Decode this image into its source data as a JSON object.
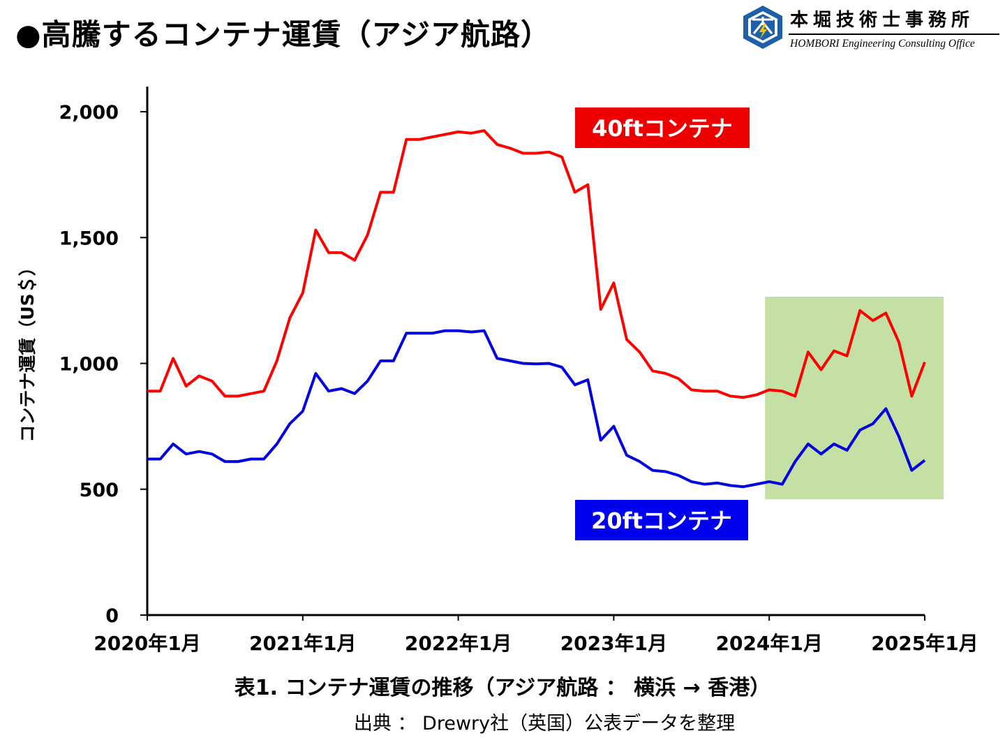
{
  "page": {
    "title": "●高騰するコンテナ運賃（アジア航路）",
    "logo_name": "本堀技術士事務所",
    "logo_sub": "HOMBORI Engineering Consulting Office",
    "caption": "表1. コンテナ運賃の推移（アジア航路 ： 横浜 → 香港）",
    "source": "出典 ： Drewry社（英国）公表データを整理"
  },
  "colors": {
    "series_40ft": "#ff0000",
    "series_20ft": "#0000e0",
    "label_40ft_bg": "#ee0000",
    "label_20ft_bg": "#0000ee",
    "highlight": "#c5e0a5",
    "logo_blue": "#1e5fa8",
    "logo_yellow": "#f5c400"
  },
  "chart_data": {
    "type": "line",
    "ylabel": "コンテナ運賃（US＄）",
    "xlabel": "",
    "ylim": [
      0,
      2100
    ],
    "yticks": [
      0,
      500,
      1000,
      1500,
      2000
    ],
    "ytick_labels": [
      "0",
      "500",
      "1,000",
      "1,500",
      "2,000"
    ],
    "xlim": [
      "2020-01",
      "2025-01"
    ],
    "xtick_labels": [
      "2020年1月",
      "2021年1月",
      "2022年1月",
      "2023年1月",
      "2024年1月",
      "2025年1月"
    ],
    "x": [
      "2020-01",
      "2020-02",
      "2020-03",
      "2020-04",
      "2020-05",
      "2020-06",
      "2020-07",
      "2020-08",
      "2020-09",
      "2020-10",
      "2020-11",
      "2020-12",
      "2021-01",
      "2021-02",
      "2021-03",
      "2021-04",
      "2021-05",
      "2021-06",
      "2021-07",
      "2021-08",
      "2021-09",
      "2021-10",
      "2021-11",
      "2021-12",
      "2022-01",
      "2022-02",
      "2022-03",
      "2022-04",
      "2022-05",
      "2022-06",
      "2022-07",
      "2022-08",
      "2022-09",
      "2022-10",
      "2022-11",
      "2022-12",
      "2023-01",
      "2023-02",
      "2023-03",
      "2023-04",
      "2023-05",
      "2023-06",
      "2023-07",
      "2023-08",
      "2023-09",
      "2023-10",
      "2023-11",
      "2023-12",
      "2024-01",
      "2024-02",
      "2024-03",
      "2024-04",
      "2024-05",
      "2024-06",
      "2024-07",
      "2024-08",
      "2024-09",
      "2024-10",
      "2024-11",
      "2024-12",
      "2025-01"
    ],
    "series": [
      {
        "name": "40ftコンテナ",
        "values": [
          890,
          890,
          1020,
          910,
          950,
          930,
          870,
          870,
          880,
          890,
          1010,
          1180,
          1280,
          1530,
          1440,
          1440,
          1410,
          1510,
          1680,
          1680,
          1890,
          1890,
          1900,
          1910,
          1920,
          1915,
          1925,
          1870,
          1855,
          1835,
          1835,
          1840,
          1820,
          1680,
          1710,
          1215,
          1320,
          1095,
          1045,
          970,
          960,
          940,
          895,
          890,
          890,
          870,
          865,
          875,
          895,
          890,
          870,
          1045,
          975,
          1050,
          1030,
          1210,
          1170,
          1200,
          1085,
          870,
          1005
        ]
      },
      {
        "name": "20ftコンテナ",
        "values": [
          620,
          620,
          680,
          640,
          650,
          640,
          610,
          610,
          620,
          620,
          680,
          760,
          810,
          960,
          890,
          900,
          880,
          930,
          1010,
          1010,
          1120,
          1120,
          1120,
          1130,
          1130,
          1125,
          1130,
          1020,
          1010,
          1000,
          998,
          1000,
          985,
          915,
          935,
          695,
          750,
          635,
          610,
          575,
          570,
          555,
          530,
          520,
          525,
          515,
          510,
          520,
          530,
          520,
          610,
          680,
          640,
          680,
          655,
          735,
          760,
          820,
          710,
          575,
          615
        ]
      }
    ],
    "highlight_range": [
      "2024-01",
      "2025-01"
    ],
    "grid": false,
    "legend": "inline labels"
  }
}
